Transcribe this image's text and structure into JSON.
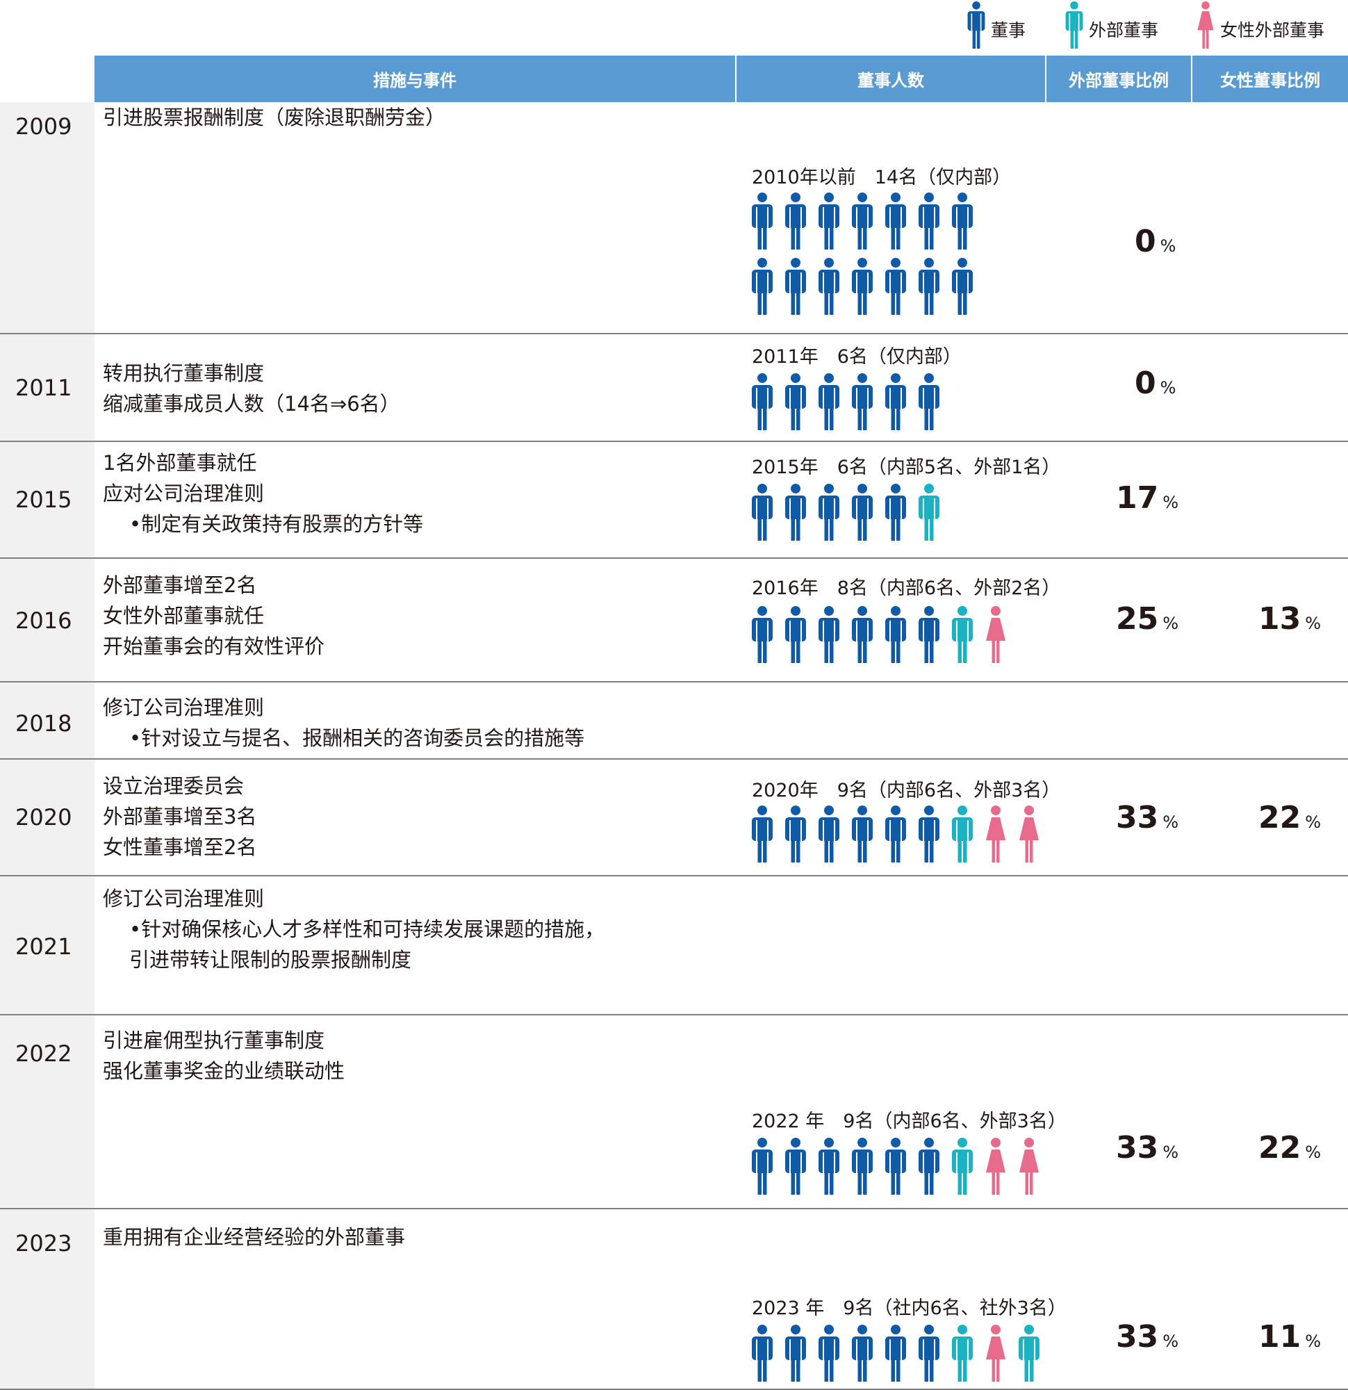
{
  "legend": [
    {
      "icon": "blue-person-icon",
      "label": "董事"
    },
    {
      "icon": "teal-person-icon",
      "label": "外部董事"
    },
    {
      "icon": "pink-female-person-icon",
      "label": "女性外部董事"
    }
  ],
  "colors": {
    "director": "#0f5ba7",
    "outside": "#1bb3c2",
    "female": "#e86b8b",
    "header": "#5b9bd4",
    "year_bg": "#f1f1f1"
  },
  "header": {
    "measures": "措施与事件",
    "count": "董事人数",
    "outside_ratio": "外部董事比例",
    "female_ratio": "女性董事比例"
  },
  "percent_unit": "%",
  "rows": [
    {
      "year": "2009",
      "events": [
        {
          "text": "引进股票报酬制度（废除退职酬劳金）"
        }
      ],
      "board": "2010年以前　14名（仅内部）",
      "icons": [
        "d",
        "d",
        "d",
        "d",
        "d",
        "d",
        "d",
        "d",
        "d",
        "d",
        "d",
        "d",
        "d",
        "d"
      ],
      "outside_pct": "0",
      "female_pct": ""
    },
    {
      "year": "2011",
      "events": [
        {
          "text": "转用执行董事制度"
        },
        {
          "text": "缩减董事成员人数（14名⇒6名）"
        }
      ],
      "board": "2011年　6名（仅内部）",
      "icons": [
        "d",
        "d",
        "d",
        "d",
        "d",
        "d"
      ],
      "outside_pct": "0",
      "female_pct": ""
    },
    {
      "year": "2015",
      "events": [
        {
          "text": "1名外部董事就任"
        },
        {
          "text": "应对公司治理准则"
        },
        {
          "text": "•制定有关政策持有股票的方针等",
          "sub": true
        }
      ],
      "board": "2015年　6名（内部5名、外部1名）",
      "icons": [
        "d",
        "d",
        "d",
        "d",
        "d",
        "o"
      ],
      "outside_pct": "17",
      "female_pct": ""
    },
    {
      "year": "2016",
      "events": [
        {
          "text": "外部董事增至2名"
        },
        {
          "text": "女性外部董事就任"
        },
        {
          "text": "开始董事会的有效性评价"
        }
      ],
      "board": "2016年　8名（内部6名、外部2名）",
      "icons": [
        "d",
        "d",
        "d",
        "d",
        "d",
        "d",
        "o",
        "f"
      ],
      "outside_pct": "25",
      "female_pct": "13"
    },
    {
      "year": "2018",
      "events": [
        {
          "text": "修订公司治理准则"
        },
        {
          "text": "•针对设立与提名、报酬相关的咨询委员会的措施等",
          "sub": true
        }
      ],
      "board": "",
      "icons": [],
      "outside_pct": "",
      "female_pct": ""
    },
    {
      "year": "2020",
      "events": [
        {
          "text": "设立治理委员会"
        },
        {
          "text": "外部董事增至3名"
        },
        {
          "text": "女性董事增至2名"
        }
      ],
      "board": "2020年　9名（内部6名、外部3名）",
      "icons": [
        "d",
        "d",
        "d",
        "d",
        "d",
        "d",
        "o",
        "f",
        "f"
      ],
      "outside_pct": "33",
      "female_pct": "22"
    },
    {
      "year": "2021",
      "events": [
        {
          "text": "修订公司治理准则"
        },
        {
          "text": "•针对确保核心人才多样性和可持续发展课题的措施，",
          "sub": true
        },
        {
          "text": "  引进带转让限制的股票报酬制度",
          "sub": true
        }
      ],
      "board": "",
      "icons": [],
      "outside_pct": "",
      "female_pct": ""
    },
    {
      "year": "2022",
      "events": [
        {
          "text": "引进雇佣型执行董事制度"
        },
        {
          "text": "强化董事奖金的业绩联动性"
        }
      ],
      "board": "2022 年　9名（内部6名、外部3名）",
      "icons": [
        "d",
        "d",
        "d",
        "d",
        "d",
        "d",
        "o",
        "f",
        "f"
      ],
      "outside_pct": "33",
      "female_pct": "22"
    },
    {
      "year": "2023",
      "events": [
        {
          "text": "重用拥有企业经营经验的外部董事"
        }
      ],
      "board": "2023 年　9名（社内6名、社外3名）",
      "icons": [
        "d",
        "d",
        "d",
        "d",
        "d",
        "d",
        "o",
        "f",
        "o"
      ],
      "outside_pct": "33",
      "female_pct": "11"
    }
  ]
}
